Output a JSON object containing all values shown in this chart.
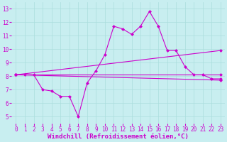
{
  "xlabel": "Windchill (Refroidissement éolien,°C)",
  "bg_color": "#c8eef0",
  "line_color": "#cc00cc",
  "grid_color": "#aadddd",
  "x_data": [
    0,
    1,
    2,
    3,
    4,
    5,
    6,
    7,
    8,
    9,
    10,
    11,
    12,
    13,
    14,
    15,
    16,
    17,
    18,
    19,
    20,
    21,
    22,
    23
  ],
  "y_main": [
    8.1,
    8.1,
    8.1,
    7.0,
    6.9,
    6.5,
    6.5,
    5.0,
    7.5,
    8.4,
    9.6,
    11.7,
    11.5,
    11.1,
    11.7,
    12.8,
    11.7,
    9.9,
    9.9,
    8.7,
    8.1,
    8.1,
    7.8,
    7.8
  ],
  "y_upper_trend_start": 8.1,
  "y_upper_trend_end": 9.9,
  "y_lower_trend_start": 8.1,
  "y_lower_trend_end": 7.7,
  "y_mid_trend_start": 8.1,
  "y_mid_trend_end": 8.1,
  "xlim": [
    -0.5,
    23.5
  ],
  "ylim": [
    4.5,
    13.5
  ],
  "yticks": [
    5,
    6,
    7,
    8,
    9,
    10,
    11,
    12,
    13
  ],
  "xticks": [
    0,
    1,
    2,
    3,
    4,
    5,
    6,
    7,
    8,
    9,
    10,
    11,
    12,
    13,
    14,
    15,
    16,
    17,
    18,
    19,
    20,
    21,
    22,
    23
  ],
  "tick_fontsize": 5.5,
  "xlabel_fontsize": 6.5,
  "marker_size": 2.5,
  "linewidth": 0.8
}
